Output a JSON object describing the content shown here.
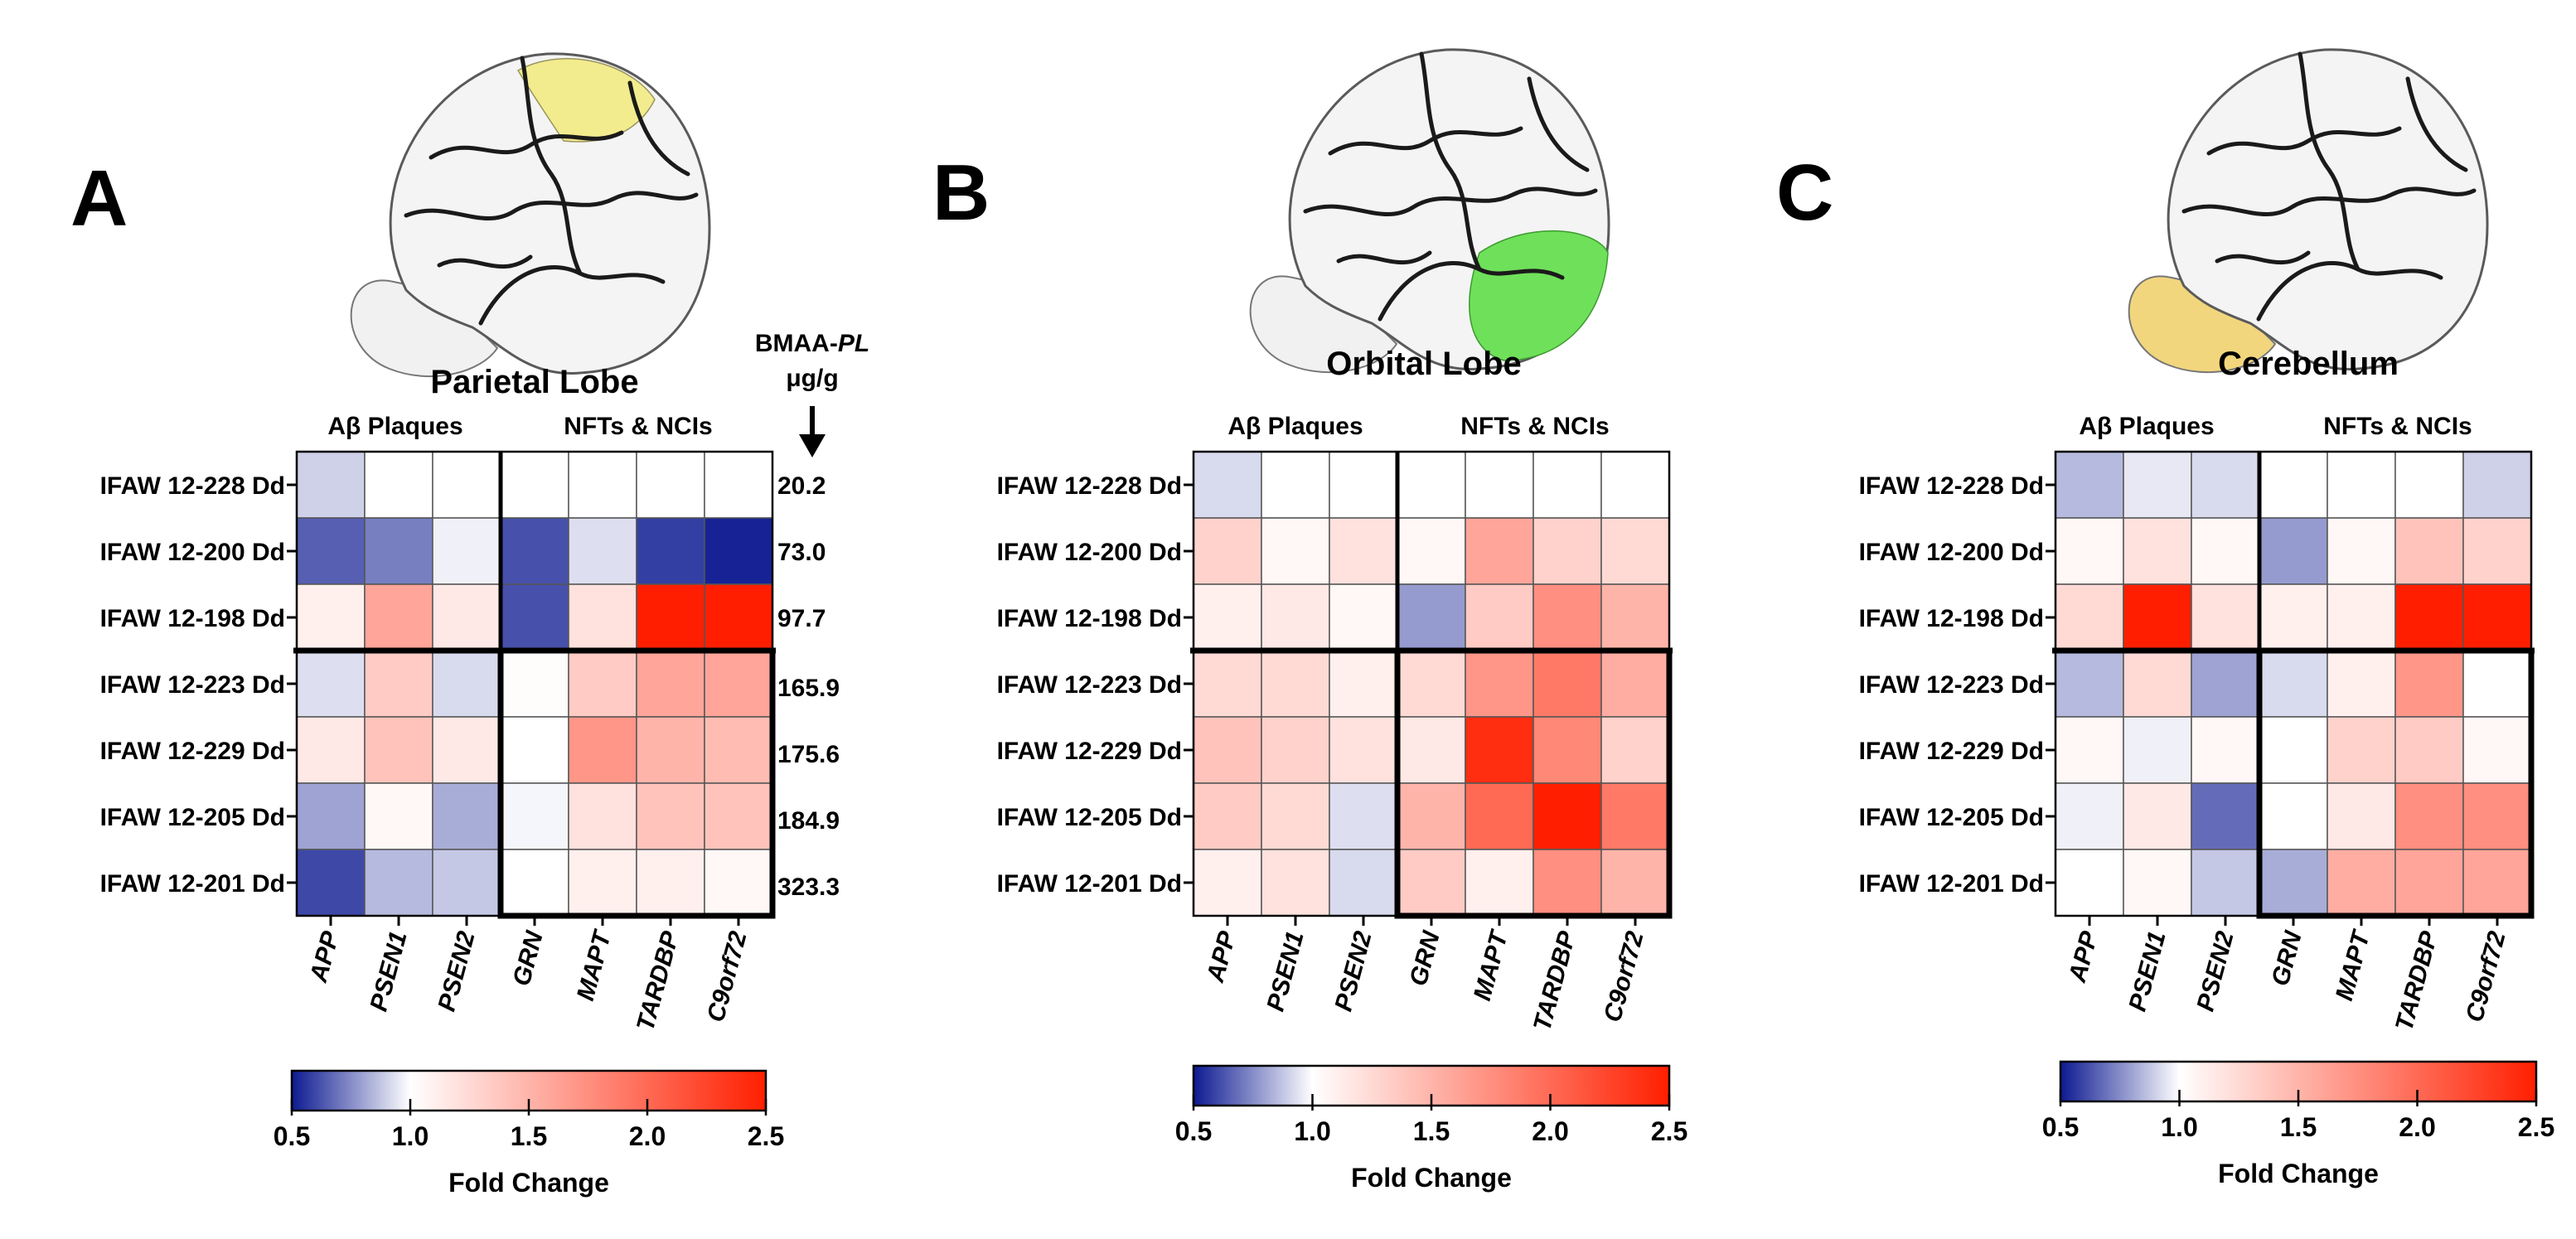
{
  "chart_data": [
    {
      "type": "heatmap",
      "panel_letter": "A",
      "title": "Parietal Lobe",
      "highlight_region": "parietal",
      "highlight_color": "#f3ec8e",
      "group_labels": [
        "Aβ Plaques",
        "NFTs & NCIs"
      ],
      "rows": [
        "IFAW 12-228 Dd",
        "IFAW 12-200 Dd",
        "IFAW 12-198 Dd",
        "IFAW 12-223 Dd",
        "IFAW 12-229 Dd",
        "IFAW 12-205 Dd",
        "IFAW 12-201 Dd"
      ],
      "columns": [
        "APP",
        "PSEN1",
        "PSEN2",
        "GRN",
        "MAPT",
        "TARDBP",
        "C9orf72"
      ],
      "values": [
        [
          0.9,
          1.0,
          1.0,
          1.0,
          1.0,
          1.0,
          1.0
        ],
        [
          0.65,
          0.72,
          0.97,
          0.62,
          0.93,
          0.58,
          0.52
        ],
        [
          1.1,
          1.6,
          1.15,
          0.62,
          1.2,
          2.5,
          2.5
        ],
        [
          0.93,
          1.35,
          0.92,
          1.02,
          1.35,
          1.6,
          1.6
        ],
        [
          1.15,
          1.4,
          1.15,
          1.0,
          1.7,
          1.5,
          1.45
        ],
        [
          0.8,
          1.05,
          0.82,
          0.98,
          1.2,
          1.4,
          1.4
        ],
        [
          0.6,
          0.85,
          0.88,
          1.0,
          1.1,
          1.1,
          1.05
        ]
      ],
      "right_header": [
        "BMAA-",
        "PL",
        "μg/g"
      ],
      "right_values": [
        "20.2",
        "73.0",
        "97.7",
        "165.9",
        "175.6",
        "184.9",
        "323.3"
      ],
      "colorbar": {
        "min": 0.5,
        "max": 2.5,
        "ticks": [
          "0.5",
          "1.0",
          "1.5",
          "2.0",
          "2.5"
        ],
        "label": "Fold Change",
        "colors": {
          "low": "#0d1a91",
          "mid": "#ffffff",
          "high": "#ff1f00"
        }
      }
    },
    {
      "type": "heatmap",
      "panel_letter": "B",
      "title": "Orbital Lobe",
      "highlight_region": "orbital",
      "highlight_color": "#6fe05a",
      "group_labels": [
        "Aβ Plaques",
        "NFTs & NCIs"
      ],
      "rows": [
        "IFAW 12-228 Dd",
        "IFAW 12-200 Dd",
        "IFAW 12-198 Dd",
        "IFAW 12-223 Dd",
        "IFAW 12-229 Dd",
        "IFAW 12-205 Dd",
        "IFAW 12-201 Dd"
      ],
      "columns": [
        "APP",
        "PSEN1",
        "PSEN2",
        "GRN",
        "MAPT",
        "TARDBP",
        "C9orf72"
      ],
      "values": [
        [
          0.92,
          1.0,
          1.0,
          1.0,
          1.0,
          1.0,
          1.0
        ],
        [
          1.3,
          1.05,
          1.2,
          1.05,
          1.6,
          1.3,
          1.25
        ],
        [
          1.1,
          1.15,
          1.05,
          0.78,
          1.35,
          1.75,
          1.5
        ],
        [
          1.25,
          1.25,
          1.1,
          1.25,
          1.7,
          1.9,
          1.55
        ],
        [
          1.4,
          1.3,
          1.2,
          1.15,
          2.4,
          1.8,
          1.3
        ],
        [
          1.35,
          1.25,
          0.93,
          1.5,
          2.0,
          2.5,
          1.9
        ],
        [
          1.1,
          1.2,
          0.92,
          1.35,
          1.1,
          1.75,
          1.5
        ]
      ],
      "colorbar": {
        "min": 0.5,
        "max": 2.5,
        "ticks": [
          "0.5",
          "1.0",
          "1.5",
          "2.0",
          "2.5"
        ],
        "label": "Fold Change",
        "colors": {
          "low": "#0d1a91",
          "mid": "#ffffff",
          "high": "#ff1f00"
        }
      }
    },
    {
      "type": "heatmap",
      "panel_letter": "C",
      "title": "Cerebellum",
      "highlight_region": "cerebellum",
      "highlight_color": "#f2d67d",
      "group_labels": [
        "Aβ Plaques",
        "NFTs & NCIs"
      ],
      "rows": [
        "IFAW 12-228 Dd",
        "IFAW 12-200 Dd",
        "IFAW 12-198 Dd",
        "IFAW 12-223 Dd",
        "IFAW 12-229 Dd",
        "IFAW 12-205 Dd",
        "IFAW 12-201 Dd"
      ],
      "columns": [
        "APP",
        "PSEN1",
        "PSEN2",
        "GRN",
        "MAPT",
        "TARDBP",
        "C9orf72"
      ],
      "values": [
        [
          0.85,
          0.95,
          0.92,
          1.0,
          1.0,
          1.0,
          0.9
        ],
        [
          1.05,
          1.2,
          1.05,
          0.78,
          1.05,
          1.4,
          1.3
        ],
        [
          1.25,
          2.5,
          1.2,
          1.1,
          1.1,
          2.5,
          2.5
        ],
        [
          0.85,
          1.25,
          0.8,
          0.92,
          1.1,
          1.7,
          1.0
        ],
        [
          1.05,
          0.97,
          1.05,
          1.0,
          1.3,
          1.35,
          1.05
        ],
        [
          0.97,
          1.15,
          0.68,
          1.0,
          1.15,
          1.75,
          1.75
        ],
        [
          1.0,
          1.05,
          0.88,
          0.82,
          1.55,
          1.6,
          1.6
        ]
      ],
      "colorbar": {
        "min": 0.5,
        "max": 2.5,
        "ticks": [
          "0.5",
          "1.0",
          "1.5",
          "2.0",
          "2.5"
        ],
        "label": "Fold Change",
        "colors": {
          "low": "#0d1a91",
          "mid": "#ffffff",
          "high": "#ff1f00"
        }
      }
    }
  ]
}
